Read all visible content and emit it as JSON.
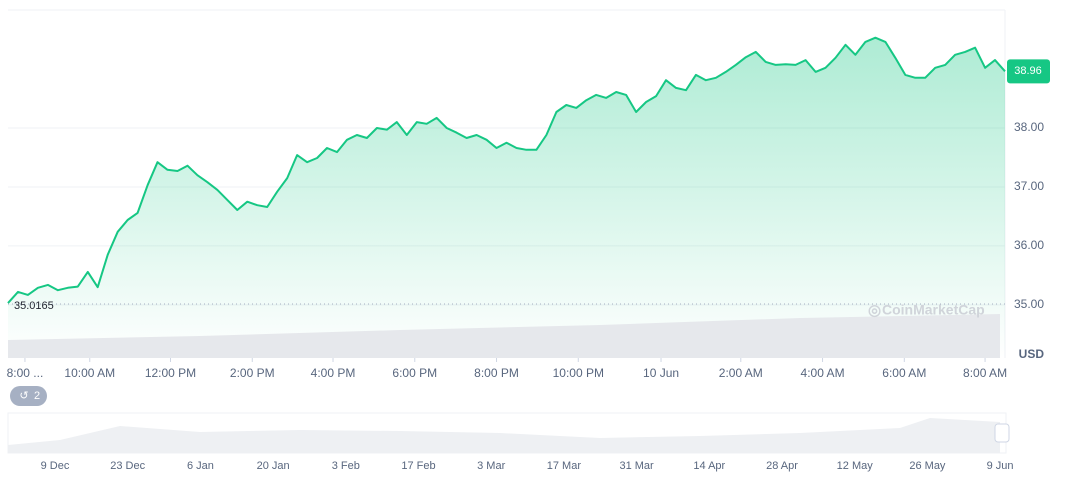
{
  "chart_data": {
    "type": "line",
    "color": "#16c784",
    "values": [
      35.03,
      35.22,
      35.17,
      35.29,
      35.34,
      35.25,
      35.29,
      35.31,
      35.56,
      35.3,
      35.85,
      36.24,
      36.44,
      36.56,
      37.03,
      37.42,
      37.29,
      37.27,
      37.36,
      37.2,
      37.08,
      36.95,
      36.78,
      36.61,
      36.75,
      36.69,
      36.66,
      36.92,
      37.15,
      37.54,
      37.42,
      37.49,
      37.66,
      37.59,
      37.8,
      37.88,
      37.83,
      38.0,
      37.97,
      38.1,
      37.88,
      38.1,
      38.07,
      38.17,
      38.0,
      37.92,
      37.83,
      37.88,
      37.8,
      37.66,
      37.75,
      37.66,
      37.63,
      37.63,
      37.88,
      38.27,
      38.39,
      38.34,
      38.47,
      38.56,
      38.51,
      38.61,
      38.56,
      38.27,
      38.44,
      38.54,
      38.81,
      38.68,
      38.64,
      38.9,
      38.81,
      38.85,
      38.95,
      39.07,
      39.2,
      39.29,
      39.12,
      39.07,
      39.08,
      39.07,
      39.15,
      38.95,
      39.02,
      39.19,
      39.41,
      39.24,
      39.46,
      39.53,
      39.46,
      39.19,
      38.9,
      38.85,
      38.85,
      39.02,
      39.07,
      39.24,
      39.29,
      39.36,
      39.02,
      39.15,
      38.96
    ],
    "xlim": [
      0,
      100
    ],
    "xticks": [
      {
        "value": 1.7,
        "label": "8:00 ..."
      },
      {
        "value": 8.2,
        "label": "10:00 AM"
      },
      {
        "value": 16.3,
        "label": "12:00 PM"
      },
      {
        "value": 24.5,
        "label": "2:00 PM"
      },
      {
        "value": 32.6,
        "label": "4:00 PM"
      },
      {
        "value": 40.8,
        "label": "6:00 PM"
      },
      {
        "value": 49.0,
        "label": "8:00 PM"
      },
      {
        "value": 57.2,
        "label": "10:00 PM"
      },
      {
        "value": 65.5,
        "label": "10 Jun"
      },
      {
        "value": 73.5,
        "label": "2:00 AM"
      },
      {
        "value": 81.7,
        "label": "4:00 AM"
      },
      {
        "value": 89.9,
        "label": "6:00 AM"
      },
      {
        "value": 98.0,
        "label": "8:00 AM"
      }
    ],
    "ylim": [
      34.1,
      40.0
    ],
    "yticks": [
      {
        "value": 35,
        "label": "35.00"
      },
      {
        "value": 36,
        "label": "36.00"
      },
      {
        "value": 37,
        "label": "37.00"
      },
      {
        "value": 38,
        "label": "38.00"
      }
    ],
    "grid": true,
    "open_line": {
      "value": 35.0165,
      "label": "35.0165"
    },
    "last_price": {
      "value": 38.96,
      "label": "38.96"
    },
    "currency": "USD",
    "watermark": "CoinMarketCap",
    "events_badge": "2",
    "navigator_labels": [
      "9 Dec",
      "23 Dec",
      "6 Jan",
      "20 Jan",
      "3 Feb",
      "17 Feb",
      "3 Mar",
      "17 Mar",
      "31 Mar",
      "14 Apr",
      "28 Apr",
      "12 May",
      "26 May",
      "9 Jun"
    ]
  }
}
